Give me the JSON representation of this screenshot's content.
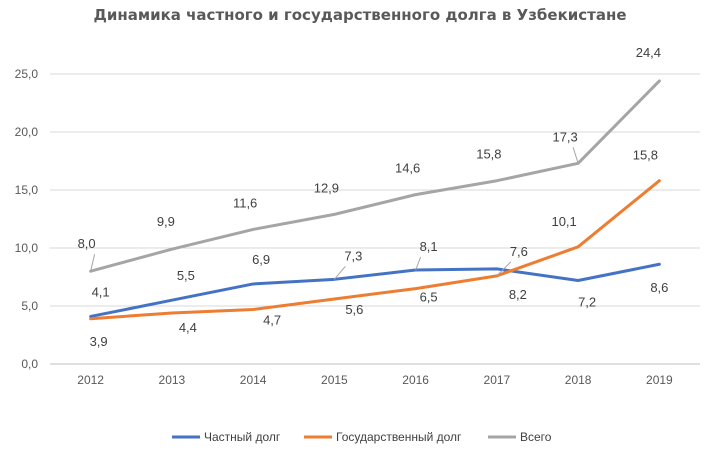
{
  "chart_data": {
    "type": "line",
    "title": "Динамика частного и государственного долга в Узбекистане",
    "categories": [
      "2012",
      "2013",
      "2014",
      "2015",
      "2016",
      "2017",
      "2018",
      "2019"
    ],
    "ylim": [
      0,
      25
    ],
    "yticks": [
      "0,0",
      "5,0",
      "10,0",
      "15,0",
      "20,0",
      "25,0"
    ],
    "grid": true,
    "legend_position": "bottom",
    "series": [
      {
        "name": "Частный долг",
        "color": "#4472C4",
        "values": [
          4.1,
          5.5,
          6.9,
          7.3,
          8.1,
          8.2,
          7.2,
          8.6
        ],
        "labels": [
          "4,1",
          "5,5",
          "6,9",
          "7,3",
          "8,1",
          "8,2",
          "7,2",
          "8,6"
        ]
      },
      {
        "name": "Государственный долг",
        "color": "#ED7D31",
        "values": [
          3.9,
          4.4,
          4.7,
          5.6,
          6.5,
          7.6,
          10.1,
          15.8
        ],
        "labels": [
          "3,9",
          "4,4",
          "4,7",
          "5,6",
          "6,5",
          "7,6",
          "10,1",
          "15,8"
        ]
      },
      {
        "name": "Всего",
        "color": "#A5A5A5",
        "values": [
          8.0,
          9.9,
          11.6,
          12.9,
          14.6,
          15.8,
          17.3,
          24.4
        ],
        "labels": [
          "8,0",
          "9,9",
          "11,6",
          "12,9",
          "14,6",
          "15,8",
          "17,3",
          "24,4"
        ]
      }
    ]
  }
}
